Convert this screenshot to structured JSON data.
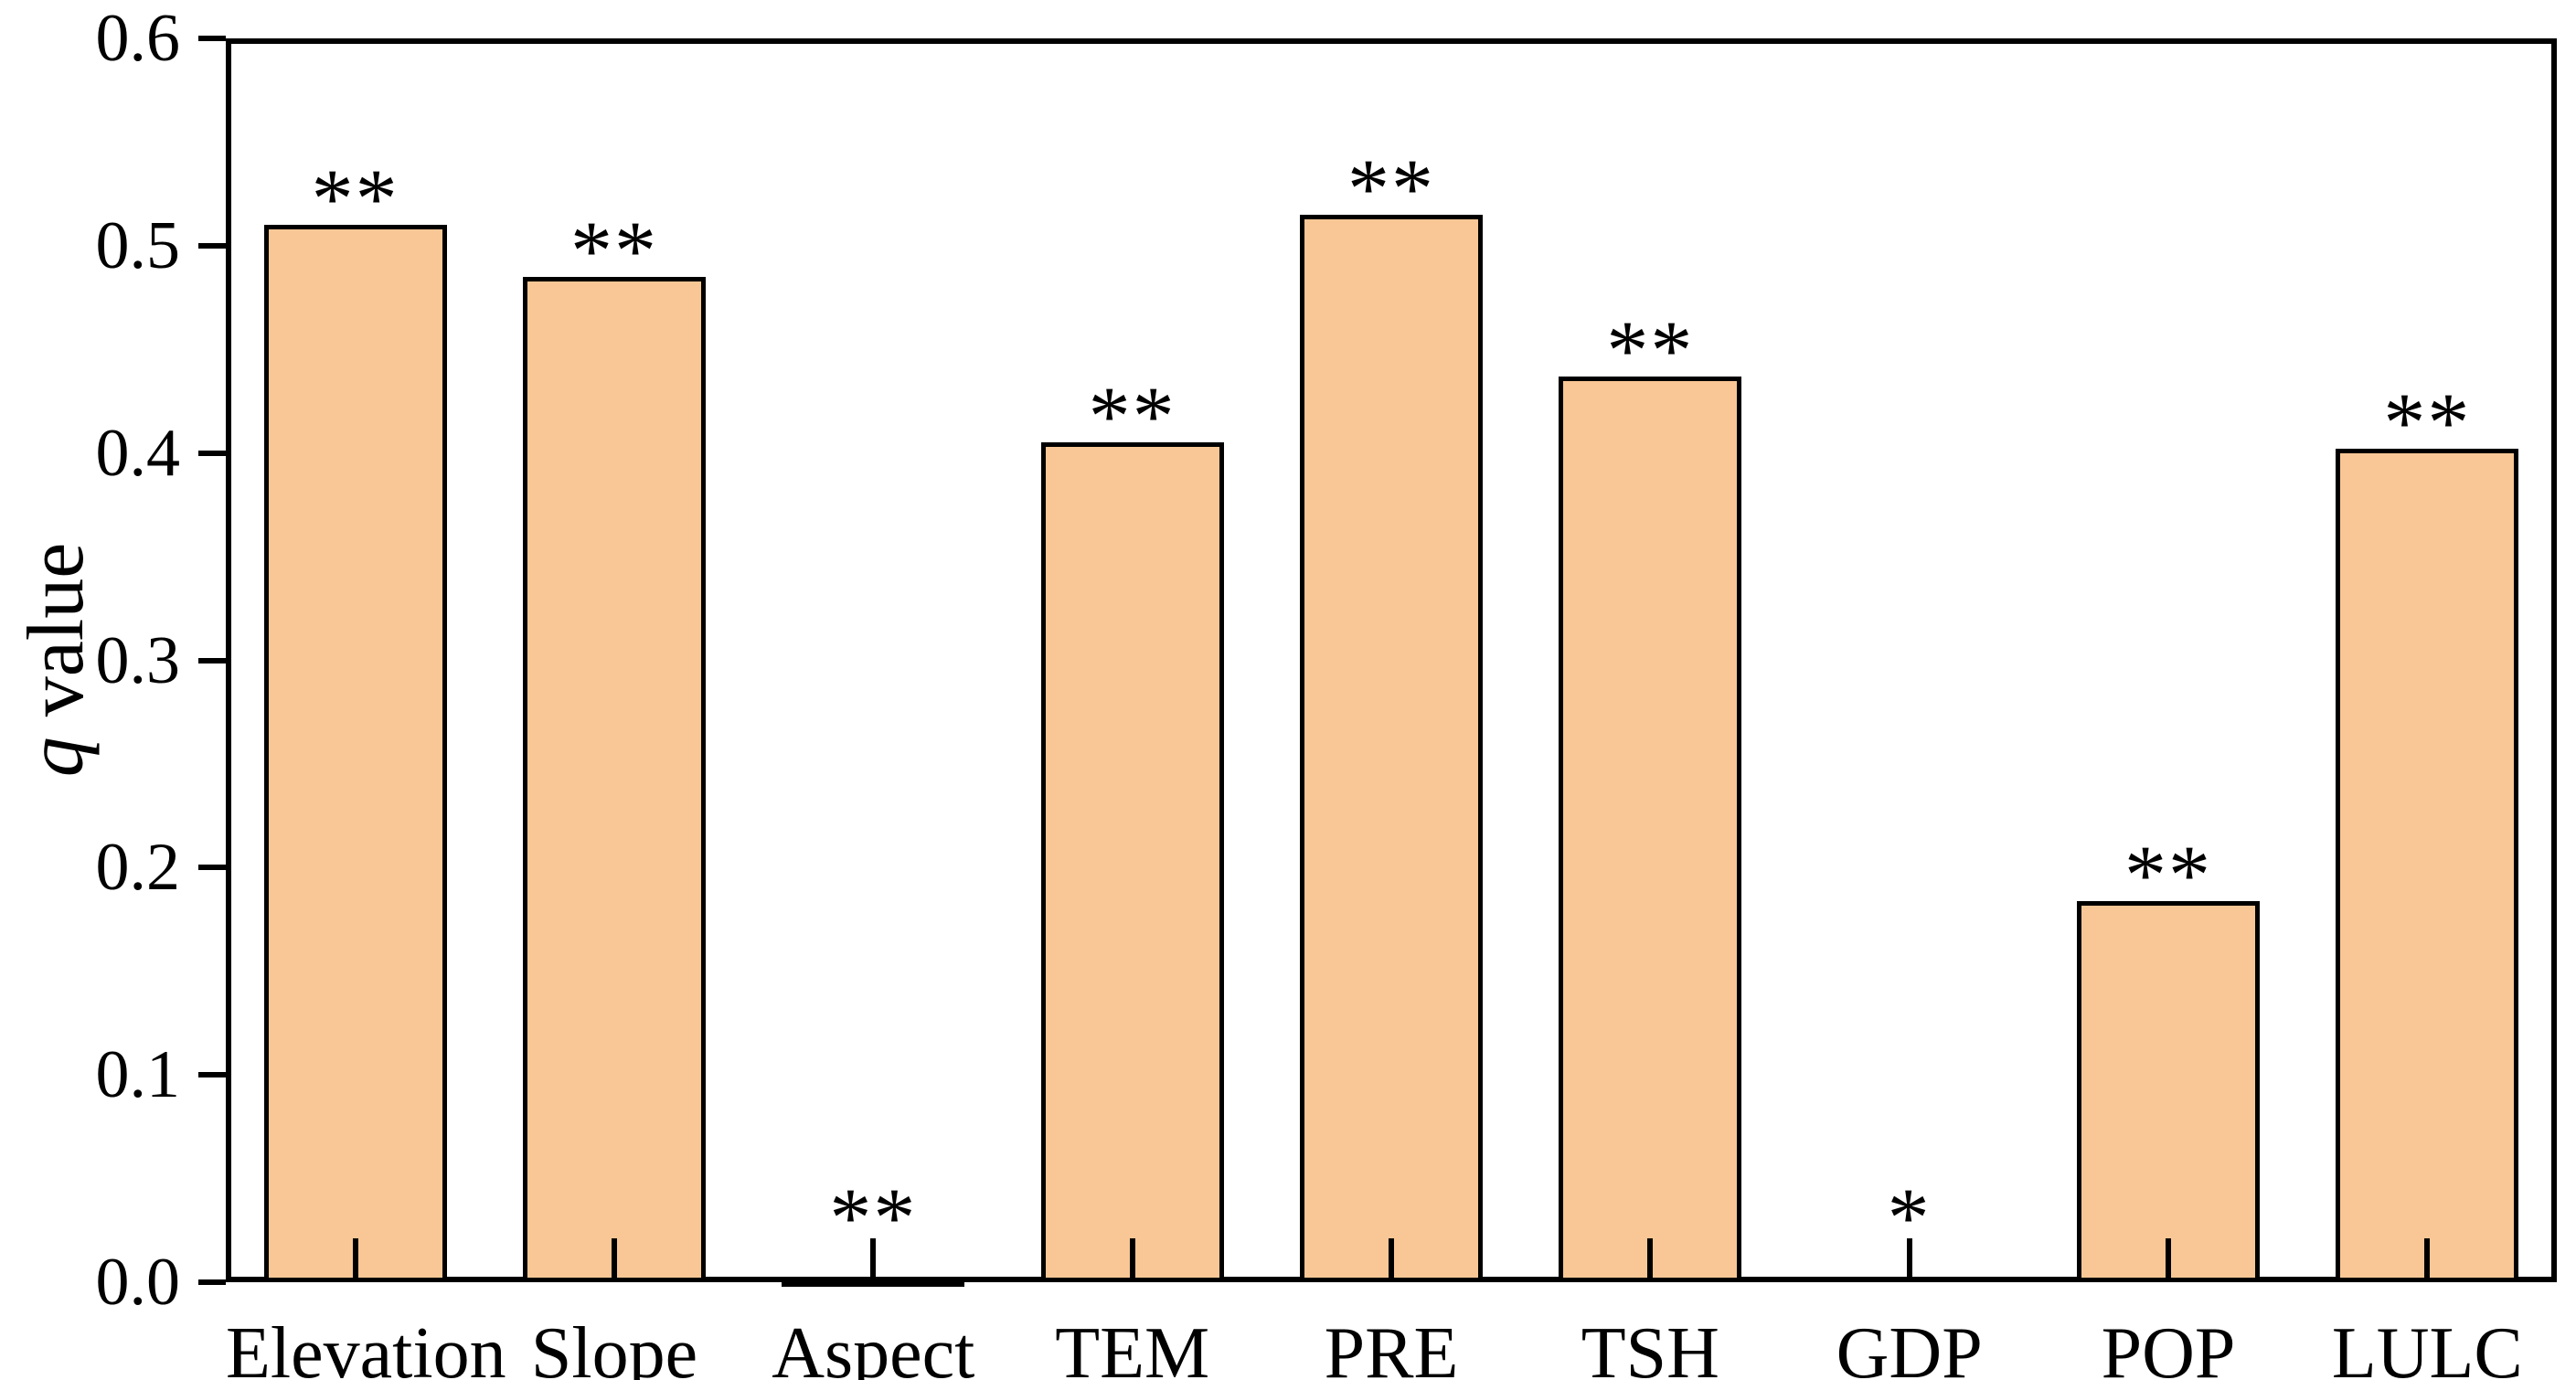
{
  "figure": {
    "background": "#ffffff",
    "text_color": "#000000",
    "y_axis_title": {
      "italic_part": "q",
      "regular_part": " value"
    }
  },
  "chart_data": {
    "type": "bar",
    "title": "",
    "xlabel": "",
    "ylabel": "q value",
    "categories": [
      "Elevation",
      "Slope",
      "Aspect",
      "TEM",
      "PRE",
      "TSH",
      "GDP",
      "POP",
      "LULC"
    ],
    "values": [
      0.51,
      0.485,
      0.002,
      0.405,
      0.515,
      0.437,
      0.0,
      0.184,
      0.402
    ],
    "significance": [
      "**",
      "**",
      "**",
      "**",
      "**",
      "**",
      "*",
      "**",
      "**"
    ],
    "ylim": [
      0,
      0.6
    ],
    "ytick_labels": [
      "0.0",
      "0.1",
      "0.2",
      "0.3",
      "0.4",
      "0.5",
      "0.6"
    ],
    "ytick_values": [
      0.0,
      0.1,
      0.2,
      0.3,
      0.4,
      0.5,
      0.6
    ],
    "grid": false,
    "legend_position": "none",
    "bar_color": "#F9C795",
    "bar_border_color": "#000000",
    "axis_color": "#000000"
  }
}
